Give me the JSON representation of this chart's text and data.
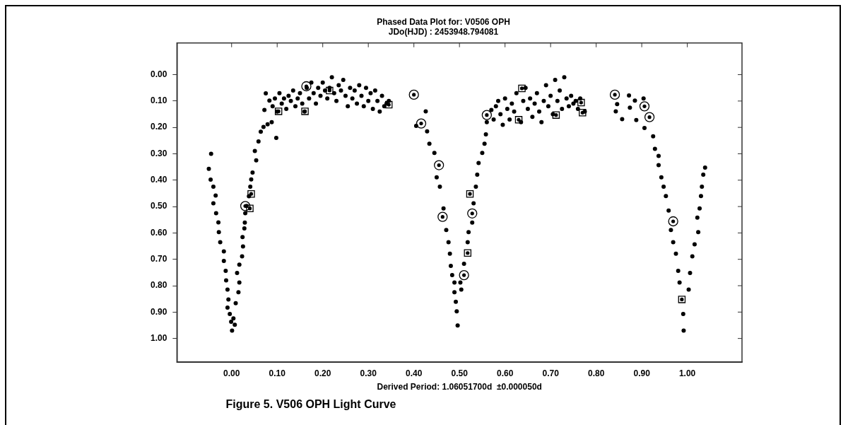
{
  "chart_data": {
    "type": "scatter",
    "title": "Phased Data Plot for: V0506 OPH",
    "subtitle": "JDo(HJD) : 2453948.794081",
    "xlabel": "Derived Period: 1.06051700d  ±0.000050d",
    "annotations": [
      "Figure 5. V506 OPH Light Curve"
    ],
    "xlim": [
      -0.12,
      1.12
    ],
    "ylim": [
      1.09,
      -0.12
    ],
    "xticks": [
      {
        "value": 0,
        "label": "0.00"
      },
      {
        "value": 0.1,
        "label": "0.10"
      },
      {
        "value": 0.2,
        "label": "0.20"
      },
      {
        "value": 0.3,
        "label": "0.30"
      },
      {
        "value": 0.4,
        "label": "0.40"
      },
      {
        "value": 0.5,
        "label": "0.50"
      },
      {
        "value": 0.6,
        "label": "0.60"
      },
      {
        "value": 0.7,
        "label": "0.70"
      },
      {
        "value": 0.8,
        "label": "0.80"
      },
      {
        "value": 0.9,
        "label": "0.90"
      },
      {
        "value": 1,
        "label": "1.00"
      }
    ],
    "yticks": [
      {
        "value": 0,
        "label": "0.00"
      },
      {
        "value": 0.1,
        "label": "0.10"
      },
      {
        "value": 0.2,
        "label": "0.20"
      },
      {
        "value": 0.3,
        "label": "0.30"
      },
      {
        "value": 0.4,
        "label": "0.40"
      },
      {
        "value": 0.5,
        "label": "0.50"
      },
      {
        "value": 0.6,
        "label": "0.60"
      },
      {
        "value": 0.7,
        "label": "0.70"
      },
      {
        "value": 0.8,
        "label": "0.80"
      },
      {
        "value": 0.9,
        "label": "0.90"
      },
      {
        "value": 1,
        "label": "1.00"
      }
    ],
    "grid": false,
    "legend": false,
    "marker": "circle",
    "series": [
      {
        "color": "#000000",
        "x": [
          -0.045,
          -0.05,
          -0.046,
          -0.04,
          -0.035,
          -0.04,
          -0.034,
          -0.029,
          -0.028,
          -0.025,
          -0.017,
          -0.017,
          -0.013,
          -0.012,
          -0.009,
          -0.007,
          -0.009,
          -0.004,
          -0.001,
          0.001,
          0.007,
          0.004,
          0.009,
          0.015,
          0.017,
          0.012,
          0.017,
          0.023,
          0.025,
          0.024,
          0.028,
          0.029,
          0.03,
          0.033,
          0.038,
          0.041,
          0.043,
          0.046,
          0.054,
          0.051,
          0.059,
          0.064,
          0.07,
          0.079,
          0.088,
          0.098,
          0.072,
          0.075,
          0.083,
          0.09,
          0.095,
          0.1,
          0.105,
          0.11,
          0.115,
          0.12,
          0.125,
          0.13,
          0.135,
          0.14,
          0.145,
          0.15,
          0.155,
          0.16,
          0.165,
          0.17,
          0.175,
          0.18,
          0.185,
          0.19,
          0.195,
          0.2,
          0.205,
          0.21,
          0.215,
          0.22,
          0.225,
          0.23,
          0.235,
          0.24,
          0.245,
          0.25,
          0.255,
          0.26,
          0.265,
          0.27,
          0.275,
          0.28,
          0.285,
          0.29,
          0.295,
          0.3,
          0.305,
          0.31,
          0.315,
          0.32,
          0.325,
          0.33,
          0.335,
          0.34,
          0.345,
          0.426,
          0.405,
          0.429,
          0.434,
          0.445,
          0.45,
          0.457,
          0.465,
          0.471,
          0.476,
          0.479,
          0.481,
          0.484,
          0.489,
          0.489,
          0.492,
          0.494,
          0.496,
          0.504,
          0.502,
          0.51,
          0.518,
          0.52,
          0.528,
          0.531,
          0.536,
          0.539,
          0.542,
          0.55,
          0.555,
          0.558,
          0.56,
          0.57,
          0.575,
          0.58,
          0.585,
          0.59,
          0.595,
          0.6,
          0.605,
          0.61,
          0.615,
          0.62,
          0.625,
          0.635,
          0.64,
          0.645,
          0.65,
          0.655,
          0.66,
          0.665,
          0.67,
          0.675,
          0.68,
          0.685,
          0.69,
          0.695,
          0.7,
          0.705,
          0.71,
          0.715,
          0.72,
          0.725,
          0.73,
          0.735,
          0.74,
          0.745,
          0.75,
          0.755,
          0.76,
          0.765,
          0.775,
          0.872,
          0.846,
          0.843,
          0.857,
          0.885,
          0.874,
          0.904,
          0.888,
          0.906,
          0.925,
          0.929,
          0.937,
          0.937,
          0.943,
          0.948,
          0.953,
          0.959,
          0.964,
          0.969,
          0.975,
          0.98,
          0.983,
          0.991,
          0.992,
          1.003,
          1.006,
          1.011,
          1.016,
          1.024,
          1.022,
          1.027,
          1.03,
          1.032,
          1.035,
          1.039
        ],
        "values": [
          0.3,
          0.357,
          0.398,
          0.425,
          0.458,
          0.488,
          0.525,
          0.56,
          0.597,
          0.635,
          0.67,
          0.706,
          0.744,
          0.78,
          0.815,
          0.852,
          0.883,
          0.907,
          0.937,
          0.97,
          0.948,
          0.924,
          0.866,
          0.825,
          0.788,
          0.752,
          0.72,
          0.689,
          0.651,
          0.616,
          0.583,
          0.561,
          0.525,
          0.498,
          0.461,
          0.425,
          0.397,
          0.371,
          0.325,
          0.289,
          0.253,
          0.216,
          0.198,
          0.188,
          0.18,
          0.24,
          0.134,
          0.071,
          0.098,
          0.12,
          0.09,
          0.14,
          0.07,
          0.11,
          0.09,
          0.13,
          0.08,
          0.1,
          0.06,
          0.12,
          0.09,
          0.07,
          0.11,
          0.14,
          0.05,
          0.09,
          0.03,
          0.07,
          0.11,
          0.05,
          0.08,
          0.03,
          0.06,
          0.09,
          0.05,
          0.01,
          0.07,
          0.1,
          0.04,
          0.06,
          0.02,
          0.08,
          0.12,
          0.05,
          0.09,
          0.06,
          0.11,
          0.04,
          0.08,
          0.12,
          0.05,
          0.1,
          0.07,
          0.13,
          0.06,
          0.1,
          0.14,
          0.08,
          0.12,
          0.11,
          0.1,
          0.139,
          0.194,
          0.215,
          0.262,
          0.297,
          0.389,
          0.425,
          0.507,
          0.589,
          0.635,
          0.679,
          0.725,
          0.76,
          0.788,
          0.825,
          0.861,
          0.897,
          0.951,
          0.815,
          0.788,
          0.717,
          0.635,
          0.597,
          0.561,
          0.488,
          0.425,
          0.379,
          0.335,
          0.297,
          0.262,
          0.226,
          0.18,
          0.134,
          0.17,
          0.12,
          0.1,
          0.15,
          0.19,
          0.09,
          0.13,
          0.17,
          0.11,
          0.14,
          0.07,
          0.18,
          0.1,
          0.05,
          0.13,
          0.09,
          0.16,
          0.11,
          0.07,
          0.14,
          0.18,
          0.1,
          0.04,
          0.12,
          0.08,
          0.15,
          0.02,
          0.1,
          0.06,
          0.13,
          0.01,
          0.09,
          0.12,
          0.08,
          0.11,
          0.1,
          0.13,
          0.09,
          0.14,
          0.079,
          0.112,
          0.139,
          0.169,
          0.098,
          0.125,
          0.09,
          0.172,
          0.202,
          0.234,
          0.281,
          0.308,
          0.343,
          0.389,
          0.425,
          0.46,
          0.515,
          0.589,
          0.635,
          0.679,
          0.744,
          0.788,
          0.907,
          0.97,
          0.815,
          0.752,
          0.689,
          0.643,
          0.597,
          0.542,
          0.507,
          0.46,
          0.425,
          0.379,
          0.352
        ]
      },
      {
        "color": "#000000",
        "marker": "circle",
        "x": [
          0.03,
          0.164,
          0.4,
          0.416,
          0.455,
          0.463,
          0.51,
          0.528,
          0.56,
          0.841,
          0.906,
          0.917,
          0.969
        ],
        "values": [
          0.498,
          0.044,
          0.076,
          0.185,
          0.343,
          0.539,
          0.76,
          0.526,
          0.153,
          0.076,
          0.12,
          0.161,
          0.556
        ]
      },
      {
        "color": "#000000",
        "marker": "square",
        "x": [
          0.043,
          0.04,
          0.103,
          0.161,
          0.215,
          0.345,
          0.523,
          0.518,
          0.637,
          0.63,
          0.712,
          0.767,
          0.77,
          0.988
        ],
        "values": [
          0.452,
          0.507,
          0.139,
          0.139,
          0.06,
          0.114,
          0.452,
          0.676,
          0.052,
          0.171,
          0.153,
          0.106,
          0.144,
          0.852
        ]
      }
    ]
  }
}
